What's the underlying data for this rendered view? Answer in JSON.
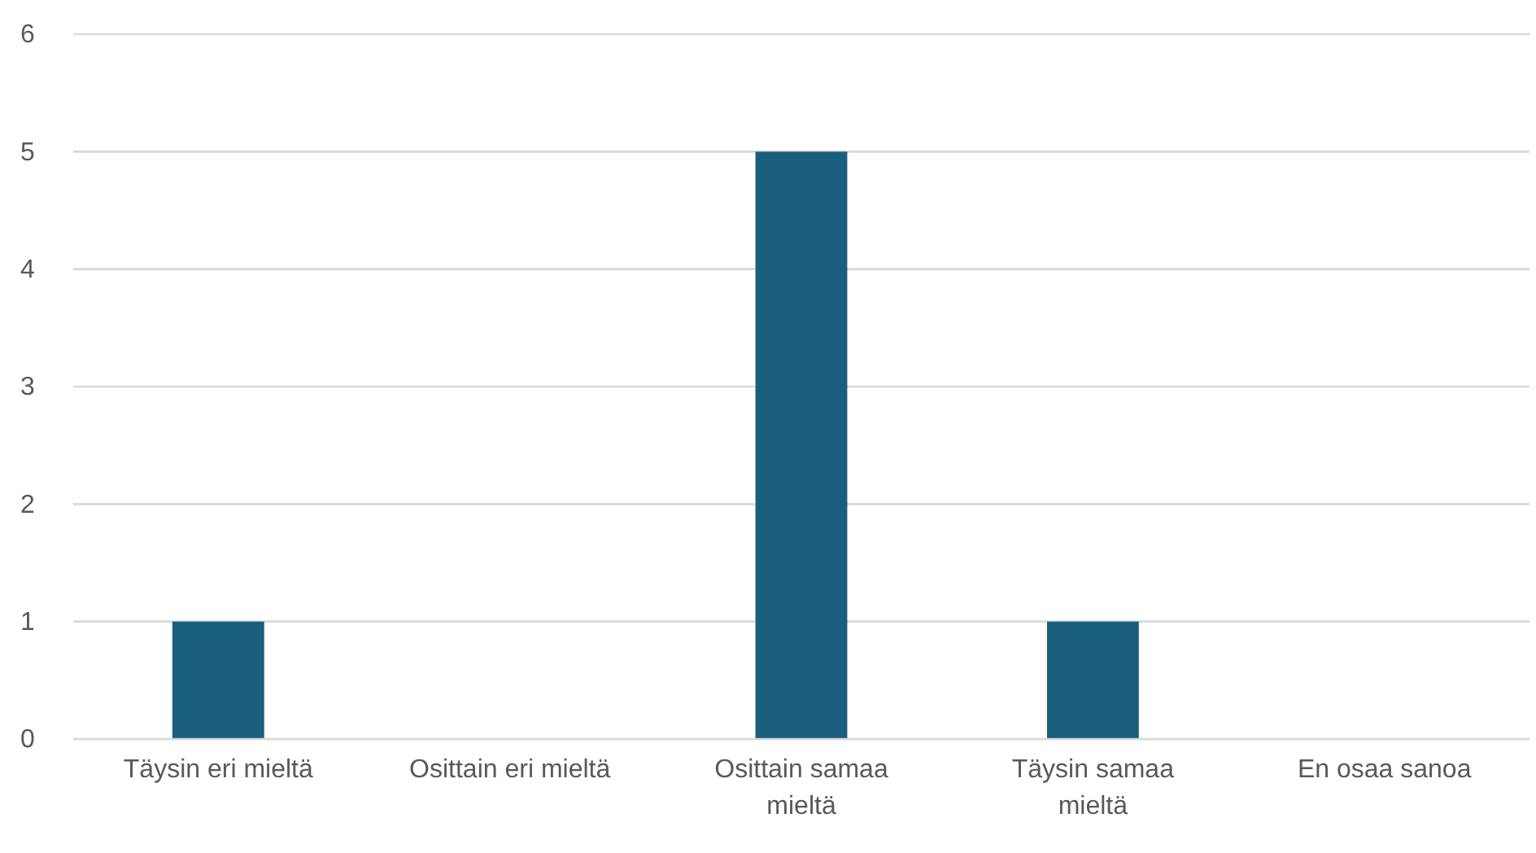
{
  "chart_data": {
    "type": "bar",
    "categories": [
      "Täysin eri mieltä",
      "Osittain eri mieltä",
      "Osittain samaa mieltä",
      "Täysin samaa mieltä",
      "En osaa sanoa"
    ],
    "values": [
      1,
      0,
      5,
      1,
      0
    ],
    "color": "#1a5e7e",
    "ylim": [
      0,
      6
    ],
    "yticks": [
      0,
      1,
      2,
      3,
      4,
      5,
      6
    ],
    "grid": "y"
  }
}
